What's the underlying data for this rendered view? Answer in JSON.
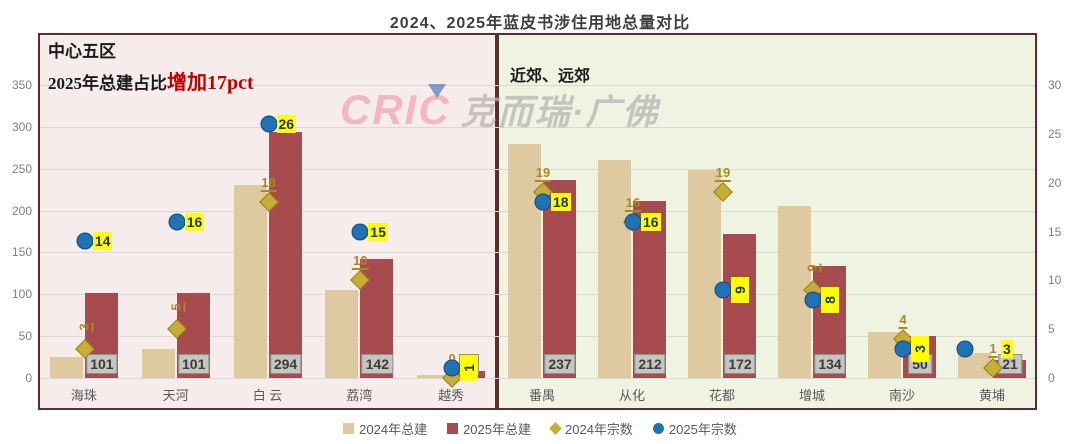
{
  "title": "2024、2025年蓝皮书涉住用地总量对比",
  "watermark": {
    "logo": "CRIC",
    "text": "克而瑞·广佛"
  },
  "panels": {
    "left": {
      "header": "中心五区",
      "subheader_black": "2025年总建占比",
      "subheader_red": "增加17pct"
    },
    "right": {
      "header": "近郊、远郊"
    }
  },
  "legend": [
    "2024年总建",
    "2025年总建",
    "2024年宗数",
    "2025年宗数"
  ],
  "colors": {
    "bar_2024": "#dec9a0",
    "bar_2025": "#a84b4f",
    "diamond": "#c7ac35",
    "circle": "#2171b5",
    "panel_left_bg": "#f7ecec",
    "panel_right_bg": "#eff3e2",
    "panel_border": "#5d2d2d",
    "highlight": "#ffff00",
    "value_box": "#c5c5c1",
    "annotation_red": "#c00000"
  },
  "chart_data": {
    "type": "bar",
    "title": "2024、2025年蓝皮书涉住用地总量对比",
    "categories": [
      "海珠",
      "天河",
      "白 云",
      "荔湾",
      "越秀",
      "番禺",
      "从化",
      "花都",
      "增城",
      "南沙",
      "黄埔"
    ],
    "category_panel": [
      0,
      0,
      0,
      0,
      0,
      1,
      1,
      1,
      1,
      1,
      1
    ],
    "panel_titles": [
      "中心五区",
      "近郊、远郊"
    ],
    "axis_left": {
      "min": 0,
      "max": 350,
      "step": 50,
      "applies_to": "总建 bars"
    },
    "axis_right": {
      "min": 0,
      "max": 30,
      "step": 5,
      "applies_to": "宗数 markers"
    },
    "grid": "horizontal, every 50 of left axis",
    "legend_position": "bottom-center",
    "series": [
      {
        "name": "2024年总建",
        "type": "bar",
        "axis": "left",
        "values": [
          25,
          35,
          230,
          105,
          3,
          280,
          260,
          248,
          205,
          55,
          30
        ],
        "labels": null
      },
      {
        "name": "2025年总建",
        "type": "bar",
        "axis": "left",
        "values": [
          101,
          101,
          294,
          142,
          8,
          237,
          212,
          172,
          134,
          50,
          21
        ],
        "labels": [
          "101",
          "101",
          "294",
          "142",
          "",
          "237",
          "212",
          "172",
          "134",
          "50",
          "21"
        ]
      },
      {
        "name": "2024年宗数",
        "type": "scatter",
        "marker": "diamond",
        "axis": "right",
        "values": [
          3,
          5,
          18,
          10,
          0,
          19,
          16,
          19,
          9,
          4,
          1
        ],
        "label_rotated": [
          true,
          true,
          false,
          false,
          false,
          false,
          false,
          false,
          true,
          false,
          false
        ]
      },
      {
        "name": "2025年宗数",
        "type": "scatter",
        "marker": "circle",
        "axis": "right",
        "values": [
          14,
          16,
          26,
          15,
          1,
          18,
          16,
          9,
          8,
          3,
          3
        ],
        "label_rotated": [
          false,
          false,
          false,
          false,
          true,
          false,
          false,
          true,
          true,
          true,
          false
        ],
        "marker_dx": [
          0,
          0,
          0,
          0,
          0,
          0,
          0,
          0,
          0,
          0,
          -28
        ]
      }
    ]
  }
}
